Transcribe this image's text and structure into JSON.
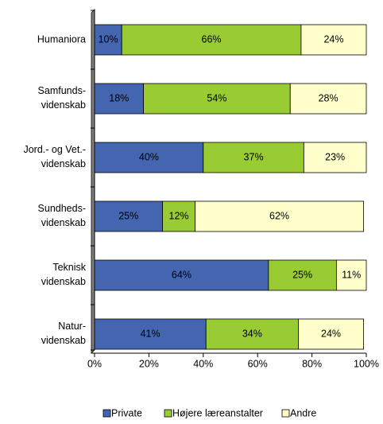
{
  "chart_data": {
    "type": "stacked-bar-horizontal",
    "categories": [
      "Humaniora",
      "Samfunds-\nvidenskab",
      "Jord.- og Vet.-\nvidenskab",
      "Sundheds-\nvidenskab",
      "Teknisk\nvidenskab",
      "Natur-\nvidenskab"
    ],
    "series": [
      {
        "name": "Private",
        "color": "#4466b0",
        "values": [
          10,
          18,
          40,
          25,
          64,
          41
        ],
        "value_labels": [
          "10%",
          "18%",
          "40%",
          "25%",
          "64%",
          "41%"
        ]
      },
      {
        "name": "Højere læreanstalter",
        "color": "#99cc33",
        "values": [
          66,
          54,
          37,
          12,
          25,
          34
        ],
        "value_labels": [
          "66%",
          "54%",
          "37%",
          "12%",
          "25%",
          "34%"
        ]
      },
      {
        "name": "Andre",
        "color": "#ffffcc",
        "values": [
          24,
          28,
          23,
          62,
          11,
          24
        ],
        "value_labels": [
          "24%",
          "28%",
          "23%",
          "62%",
          "11%",
          "24%"
        ]
      }
    ],
    "xlim": [
      0,
      100
    ],
    "xticks": [
      {
        "value": 0,
        "label": "0%"
      },
      {
        "value": 20,
        "label": "20%"
      },
      {
        "value": 40,
        "label": "40%"
      },
      {
        "value": 60,
        "label": "60%"
      },
      {
        "value": 80,
        "label": "80%"
      },
      {
        "value": 100,
        "label": "100%"
      }
    ],
    "legend": "bottom"
  }
}
